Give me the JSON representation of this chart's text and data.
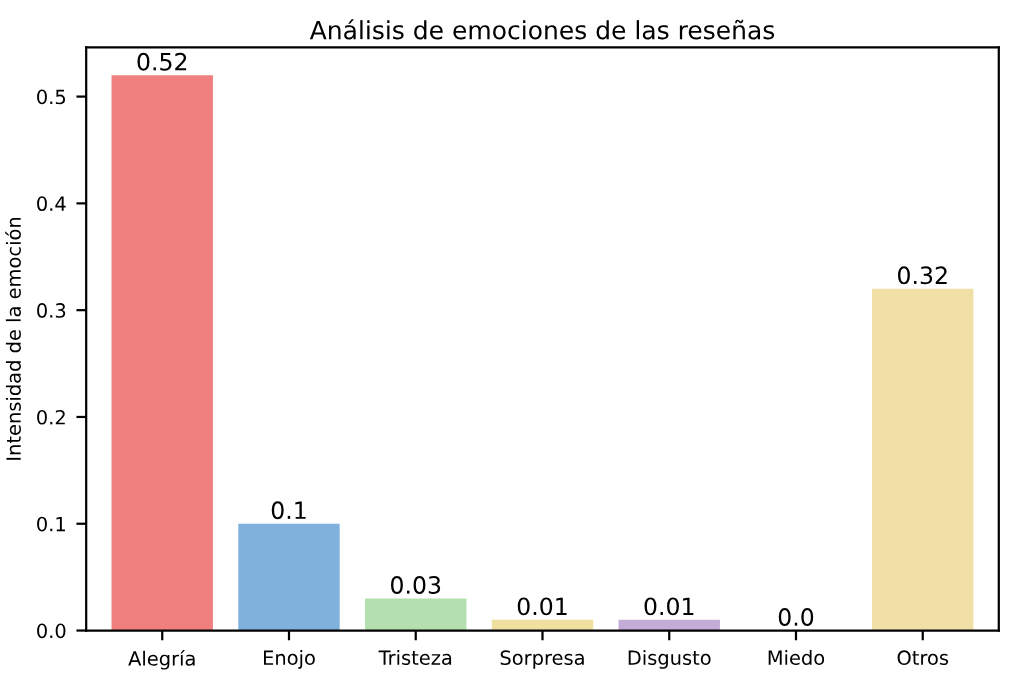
{
  "chart_data": {
    "type": "bar",
    "title": "Análisis de emociones de las reseñas",
    "ylabel": "Intensidad de la emoción",
    "categories": [
      "Alegría",
      "Enojo",
      "Tristeza",
      "Sorpresa",
      "Disgusto",
      "Miedo",
      "Otros"
    ],
    "values": [
      0.52,
      0.1,
      0.03,
      0.01,
      0.01,
      0.0,
      0.32
    ],
    "colors": [
      "#f08080",
      "#80b0dc",
      "#b4e0b0",
      "#f0e0a0",
      "#c4acd8",
      "#f4b8c8",
      "#f0e0a8"
    ],
    "ylim": [
      0,
      0.546
    ],
    "yticks": [
      {
        "value": 0,
        "label": "0.0"
      },
      {
        "value": 0.1,
        "label": "0.1"
      },
      {
        "value": 0.2,
        "label": "0.2"
      },
      {
        "value": 0.3,
        "label": "0.3"
      },
      {
        "value": 0.4,
        "label": "0.4"
      },
      {
        "value": 0.5,
        "label": "0.5"
      }
    ],
    "value_labels": [
      "0.52",
      "0.1",
      "0.03",
      "0.01",
      "0.01",
      "0.0",
      "0.32"
    ]
  }
}
